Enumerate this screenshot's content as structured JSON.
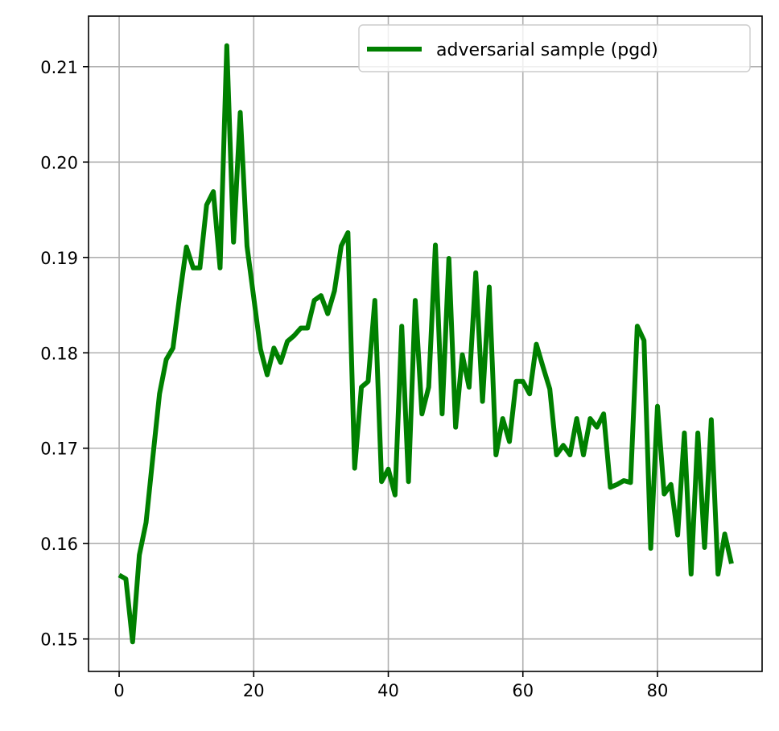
{
  "chart_data": {
    "type": "line",
    "title": "",
    "xlabel": "",
    "ylabel": "",
    "xlim": [
      -4.55,
      95.55
    ],
    "ylim": [
      0.1466,
      0.2153
    ],
    "xticks": [
      0,
      20,
      40,
      60,
      80
    ],
    "yticks": [
      0.15,
      0.16,
      0.17,
      0.18,
      0.19,
      0.2,
      0.21
    ],
    "xtick_labels": [
      "0",
      "20",
      "40",
      "60",
      "80"
    ],
    "ytick_labels": [
      "0.15",
      "0.16",
      "0.17",
      "0.18",
      "0.19",
      "0.20",
      "0.21"
    ],
    "grid": true,
    "legend_position": "top-right",
    "series": [
      {
        "name": "adversarial sample (pgd)",
        "color": "#008000",
        "x": [
          0,
          1,
          2,
          3,
          4,
          5,
          6,
          7,
          8,
          9,
          10,
          11,
          12,
          13,
          14,
          15,
          16,
          17,
          18,
          19,
          20,
          21,
          22,
          23,
          24,
          25,
          26,
          27,
          28,
          29,
          30,
          31,
          32,
          33,
          34,
          35,
          36,
          37,
          38,
          39,
          40,
          41,
          42,
          43,
          44,
          45,
          46,
          47,
          48,
          49,
          50,
          51,
          52,
          53,
          54,
          55,
          56,
          57,
          58,
          59,
          60,
          61,
          62,
          63,
          64,
          65,
          66,
          67,
          68,
          69,
          70,
          71,
          72,
          73,
          74,
          75,
          76,
          77,
          78,
          79,
          80,
          81,
          82,
          83,
          84,
          85,
          86,
          87,
          88,
          89,
          90,
          91
        ],
        "values": [
          0.1567,
          0.1563,
          0.1497,
          0.1588,
          0.1622,
          0.169,
          0.1757,
          0.1793,
          0.1805,
          0.186,
          0.1911,
          0.1889,
          0.1889,
          0.1955,
          0.1969,
          0.1889,
          0.2122,
          0.1916,
          0.2052,
          0.1912,
          0.1858,
          0.1804,
          0.1777,
          0.1805,
          0.179,
          0.1812,
          0.1818,
          0.1826,
          0.1826,
          0.1855,
          0.186,
          0.1841,
          0.1865,
          0.1912,
          0.1926,
          0.1679,
          0.1764,
          0.177,
          0.1855,
          0.1665,
          0.1678,
          0.1651,
          0.1828,
          0.1665,
          0.1855,
          0.1736,
          0.1764,
          0.1913,
          0.1736,
          0.1899,
          0.1722,
          0.1798,
          0.1764,
          0.1884,
          0.1749,
          0.1869,
          0.1693,
          0.1731,
          0.1707,
          0.177,
          0.177,
          0.1757,
          0.1809,
          0.1785,
          0.1762,
          0.1693,
          0.1703,
          0.1693,
          0.1731,
          0.1693,
          0.1731,
          0.1722,
          0.1736,
          0.1659,
          0.1662,
          0.1666,
          0.1664,
          0.1828,
          0.1813,
          0.1595,
          0.1744,
          0.1652,
          0.1662,
          0.1609,
          0.1716,
          0.1568,
          0.1716,
          0.1596,
          0.173,
          0.1568,
          0.161,
          0.1579
        ]
      }
    ]
  }
}
